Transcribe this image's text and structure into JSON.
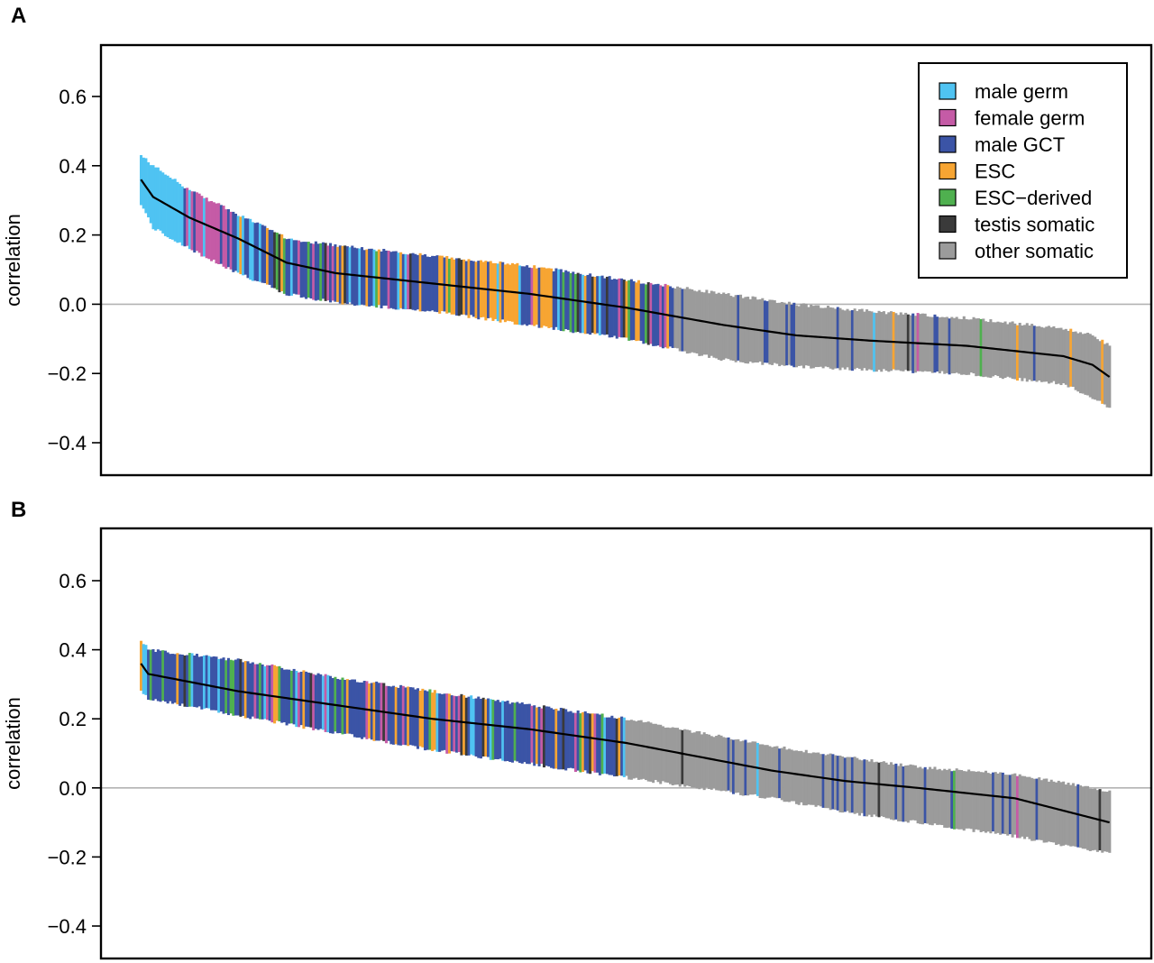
{
  "colors": {
    "male_germ": "#4fc3f2",
    "female_germ": "#c55ba6",
    "male_gct": "#3b54a6",
    "esc": "#f7a533",
    "esc_derived": "#4fb04f",
    "testis_somatic": "#3a3a3a",
    "other_somatic": "#9b9b9b",
    "line": "#000000",
    "zero_line": "#b3b3b3"
  },
  "chart_data": [
    {
      "type": "bar",
      "panel_label": "A",
      "ylabel": "correlation",
      "ylim": [
        -0.5,
        0.72
      ],
      "yticks": [
        "0.6",
        "0.4",
        "0.2",
        "0.0",
        "−0.2",
        "−0.4"
      ],
      "ytick_values": [
        0.6,
        0.4,
        0.2,
        0.0,
        -0.2,
        -0.4
      ],
      "n_samples": 400,
      "legend": {
        "placement": "top-right",
        "entries": [
          {
            "label": "male germ",
            "key": "male_germ"
          },
          {
            "label": "female germ",
            "key": "female_germ"
          },
          {
            "label": "male GCT",
            "key": "male_gct"
          },
          {
            "label": "ESC",
            "key": "esc"
          },
          {
            "label": "ESC−derived",
            "key": "esc_derived"
          },
          {
            "label": "testis somatic",
            "key": "testis_somatic"
          },
          {
            "label": "other somatic",
            "key": "other_somatic"
          }
        ]
      },
      "median_curve": [
        [
          0,
          0.36
        ],
        [
          5,
          0.31
        ],
        [
          20,
          0.25
        ],
        [
          40,
          0.19
        ],
        [
          60,
          0.12
        ],
        [
          80,
          0.09
        ],
        [
          120,
          0.06
        ],
        [
          160,
          0.03
        ],
        [
          200,
          -0.01
        ],
        [
          240,
          -0.06
        ],
        [
          270,
          -0.09
        ],
        [
          300,
          -0.105
        ],
        [
          340,
          -0.12
        ],
        [
          380,
          -0.15
        ],
        [
          392,
          -0.175
        ],
        [
          399,
          -0.21
        ]
      ],
      "upper_curve": [
        [
          0,
          0.43
        ],
        [
          5,
          0.4
        ],
        [
          20,
          0.33
        ],
        [
          40,
          0.26
        ],
        [
          60,
          0.19
        ],
        [
          80,
          0.17
        ],
        [
          120,
          0.14
        ],
        [
          160,
          0.11
        ],
        [
          200,
          0.07
        ],
        [
          240,
          0.03
        ],
        [
          270,
          0.0
        ],
        [
          300,
          -0.02
        ],
        [
          340,
          -0.04
        ],
        [
          380,
          -0.07
        ],
        [
          392,
          -0.09
        ],
        [
          399,
          -0.12
        ]
      ],
      "lower_curve": [
        [
          0,
          0.29
        ],
        [
          5,
          0.22
        ],
        [
          20,
          0.16
        ],
        [
          40,
          0.09
        ],
        [
          60,
          0.03
        ],
        [
          80,
          0.005
        ],
        [
          120,
          -0.02
        ],
        [
          160,
          -0.06
        ],
        [
          200,
          -0.1
        ],
        [
          240,
          -0.16
        ],
        [
          270,
          -0.18
        ],
        [
          300,
          -0.19
        ],
        [
          340,
          -0.2
        ],
        [
          380,
          -0.23
        ],
        [
          392,
          -0.27
        ],
        [
          399,
          -0.3
        ]
      ],
      "segments": [
        {
          "start": 0,
          "end": 18,
          "key": "male_germ"
        },
        {
          "start": 18,
          "end": 40,
          "key": "female_germ"
        },
        {
          "start": 40,
          "end": 60,
          "key": "male_gct"
        },
        {
          "start": 60,
          "end": 120,
          "key": "male_gct"
        },
        {
          "start": 120,
          "end": 170,
          "key": "esc"
        },
        {
          "start": 170,
          "end": 220,
          "key": "male_gct"
        },
        {
          "start": 220,
          "end": 260,
          "key": "other_somatic"
        },
        {
          "start": 260,
          "end": 400,
          "key": "other_somatic"
        }
      ]
    },
    {
      "type": "bar",
      "panel_label": "B",
      "ylabel": "correlation",
      "ylim": [
        -0.5,
        0.72
      ],
      "yticks": [
        "0.6",
        "0.4",
        "0.2",
        "0.0",
        "−0.2",
        "−0.4"
      ],
      "ytick_values": [
        0.6,
        0.4,
        0.2,
        0.0,
        -0.2,
        -0.4
      ],
      "n_samples": 400,
      "median_curve": [
        [
          0,
          0.36
        ],
        [
          3,
          0.33
        ],
        [
          40,
          0.28
        ],
        [
          80,
          0.24
        ],
        [
          120,
          0.2
        ],
        [
          160,
          0.17
        ],
        [
          200,
          0.13
        ],
        [
          230,
          0.09
        ],
        [
          260,
          0.05
        ],
        [
          290,
          0.02
        ],
        [
          320,
          0.0
        ],
        [
          360,
          -0.03
        ],
        [
          399,
          -0.1
        ]
      ],
      "upper_curve": [
        [
          0,
          0.43
        ],
        [
          3,
          0.4
        ],
        [
          40,
          0.37
        ],
        [
          80,
          0.32
        ],
        [
          120,
          0.28
        ],
        [
          160,
          0.24
        ],
        [
          200,
          0.2
        ],
        [
          230,
          0.16
        ],
        [
          260,
          0.12
        ],
        [
          290,
          0.09
        ],
        [
          320,
          0.06
        ],
        [
          360,
          0.04
        ],
        [
          399,
          -0.01
        ]
      ],
      "lower_curve": [
        [
          0,
          0.28
        ],
        [
          3,
          0.26
        ],
        [
          40,
          0.21
        ],
        [
          80,
          0.16
        ],
        [
          120,
          0.11
        ],
        [
          160,
          0.07
        ],
        [
          200,
          0.03
        ],
        [
          230,
          0.0
        ],
        [
          260,
          -0.03
        ],
        [
          290,
          -0.07
        ],
        [
          320,
          -0.1
        ],
        [
          360,
          -0.14
        ],
        [
          399,
          -0.19
        ]
      ],
      "segments": [
        {
          "start": 0,
          "end": 200,
          "key": "male_gct"
        },
        {
          "start": 200,
          "end": 400,
          "key": "other_somatic"
        }
      ]
    }
  ]
}
